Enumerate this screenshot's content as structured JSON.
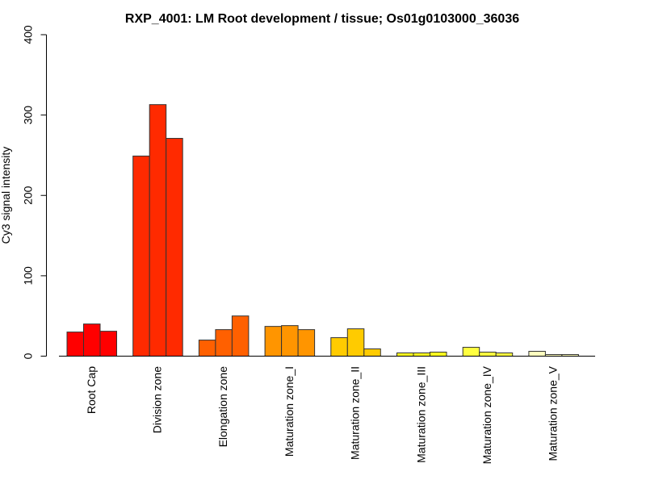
{
  "chart_data": {
    "type": "bar",
    "title": "RXP_4001: LM Root development / tissue; Os01g0103000_36036",
    "xlabel": "",
    "ylabel": "Cy3 signal intensity",
    "ylim": [
      0,
      400
    ],
    "yticks": [
      "0",
      "100",
      "200",
      "300",
      "400"
    ],
    "grid": false,
    "categories": [
      "Root Cap",
      "Division zone",
      "Elongation zone",
      "Maturation zone_I",
      "Maturation zone_II",
      "Maturation zone_III",
      "Maturation zone_IV",
      "Maturation zone_V"
    ],
    "colors": [
      "#ff0000",
      "#ff2a00",
      "#ff6000",
      "#ff9500",
      "#ffcb00",
      "#ffff20",
      "#ffff40",
      "#ffffc0"
    ],
    "replicates_per_category": 3,
    "values": [
      [
        30,
        40,
        31
      ],
      [
        249,
        313,
        271
      ],
      [
        20,
        33,
        50
      ],
      [
        37,
        38,
        33
      ],
      [
        23,
        34,
        9
      ],
      [
        4,
        4,
        5
      ],
      [
        11,
        5,
        4
      ],
      [
        6,
        2,
        2
      ]
    ]
  }
}
